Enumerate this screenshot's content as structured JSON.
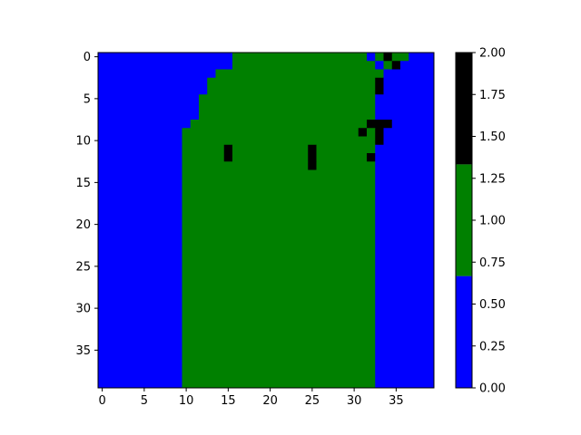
{
  "chart_data": {
    "type": "heatmap",
    "title": "",
    "xlabel": "",
    "ylabel": "",
    "rows": 40,
    "cols": 40,
    "x_ticks": [
      0,
      5,
      10,
      15,
      20,
      25,
      30,
      35
    ],
    "y_ticks": [
      0,
      5,
      10,
      15,
      20,
      25,
      30,
      35
    ],
    "y_axis_inverted": true,
    "colorbar": {
      "min": 0.0,
      "max": 2.0,
      "ticks": [
        "0.00",
        "0.25",
        "0.50",
        "0.75",
        "1.00",
        "1.25",
        "1.50",
        "1.75",
        "2.00"
      ],
      "tick_values": [
        0,
        0.25,
        0.5,
        0.75,
        1.0,
        1.25,
        1.5,
        1.75,
        2.0
      ],
      "bands": [
        {
          "value": 0,
          "from": 0.0,
          "to": 0.667,
          "color": "#0000ff"
        },
        {
          "value": 1,
          "from": 0.667,
          "to": 1.333,
          "color": "#008000"
        },
        {
          "value": 2,
          "from": 1.333,
          "to": 2.0,
          "color": "#000000"
        }
      ]
    },
    "grid": false,
    "legend": "colorbar-right",
    "values": [
      "0000000000000000111111111111111101211000",
      "0000000000000000111111111111111110120000",
      "0000000000000011111111111111111111000000",
      "0000000000000111111111111111111112000000",
      "0000000000000111111111111111111112000000",
      "0000000000001111111111111111111110000000",
      "0000000000001111111111111111111110000000",
      "0000000000001111111111111111111110000000",
      "0000000000011111111111111111111122200000",
      "0000000000111111111111111111111212000000",
      "0000000000111111111111111111111112000000",
      "0000000000111112111111111211111110000000",
      "0000000000111112111111111211111120000000",
      "0000000000111111111111111211111110000000",
      "0000000000111111111111111111111110000000",
      "0000000000111111111111111111111110000000",
      "0000000000111111111111111111111110000000",
      "0000000000111111111111111111111110000000",
      "0000000000111111111111111111111110000000",
      "0000000000111111111111111111111110000000",
      "0000000000111111111111111111111110000000",
      "0000000000111111111111111111111110000000",
      "0000000000111111111111111111111110000000",
      "0000000000111111111111111111111110000000",
      "0000000000111111111111111111111110000000",
      "0000000000111111111111111111111110000000",
      "0000000000111111111111111111111110000000",
      "0000000000111111111111111111111110000000",
      "0000000000111111111111111111111110000000",
      "0000000000111111111111111111111110000000",
      "0000000000111111111111111111111110000000",
      "0000000000111111111111111111111110000000",
      "0000000000111111111111111111111110000000",
      "0000000000111111111111111111111110000000",
      "0000000000111111111111111111111110000000",
      "0000000000111111111111111111111110000000",
      "0000000000111111111111111111111110000000",
      "0000000000111111111111111111111110000000",
      "0000000000111111111111111111111110000000",
      "0000000000111111111111111111111110000000"
    ]
  }
}
